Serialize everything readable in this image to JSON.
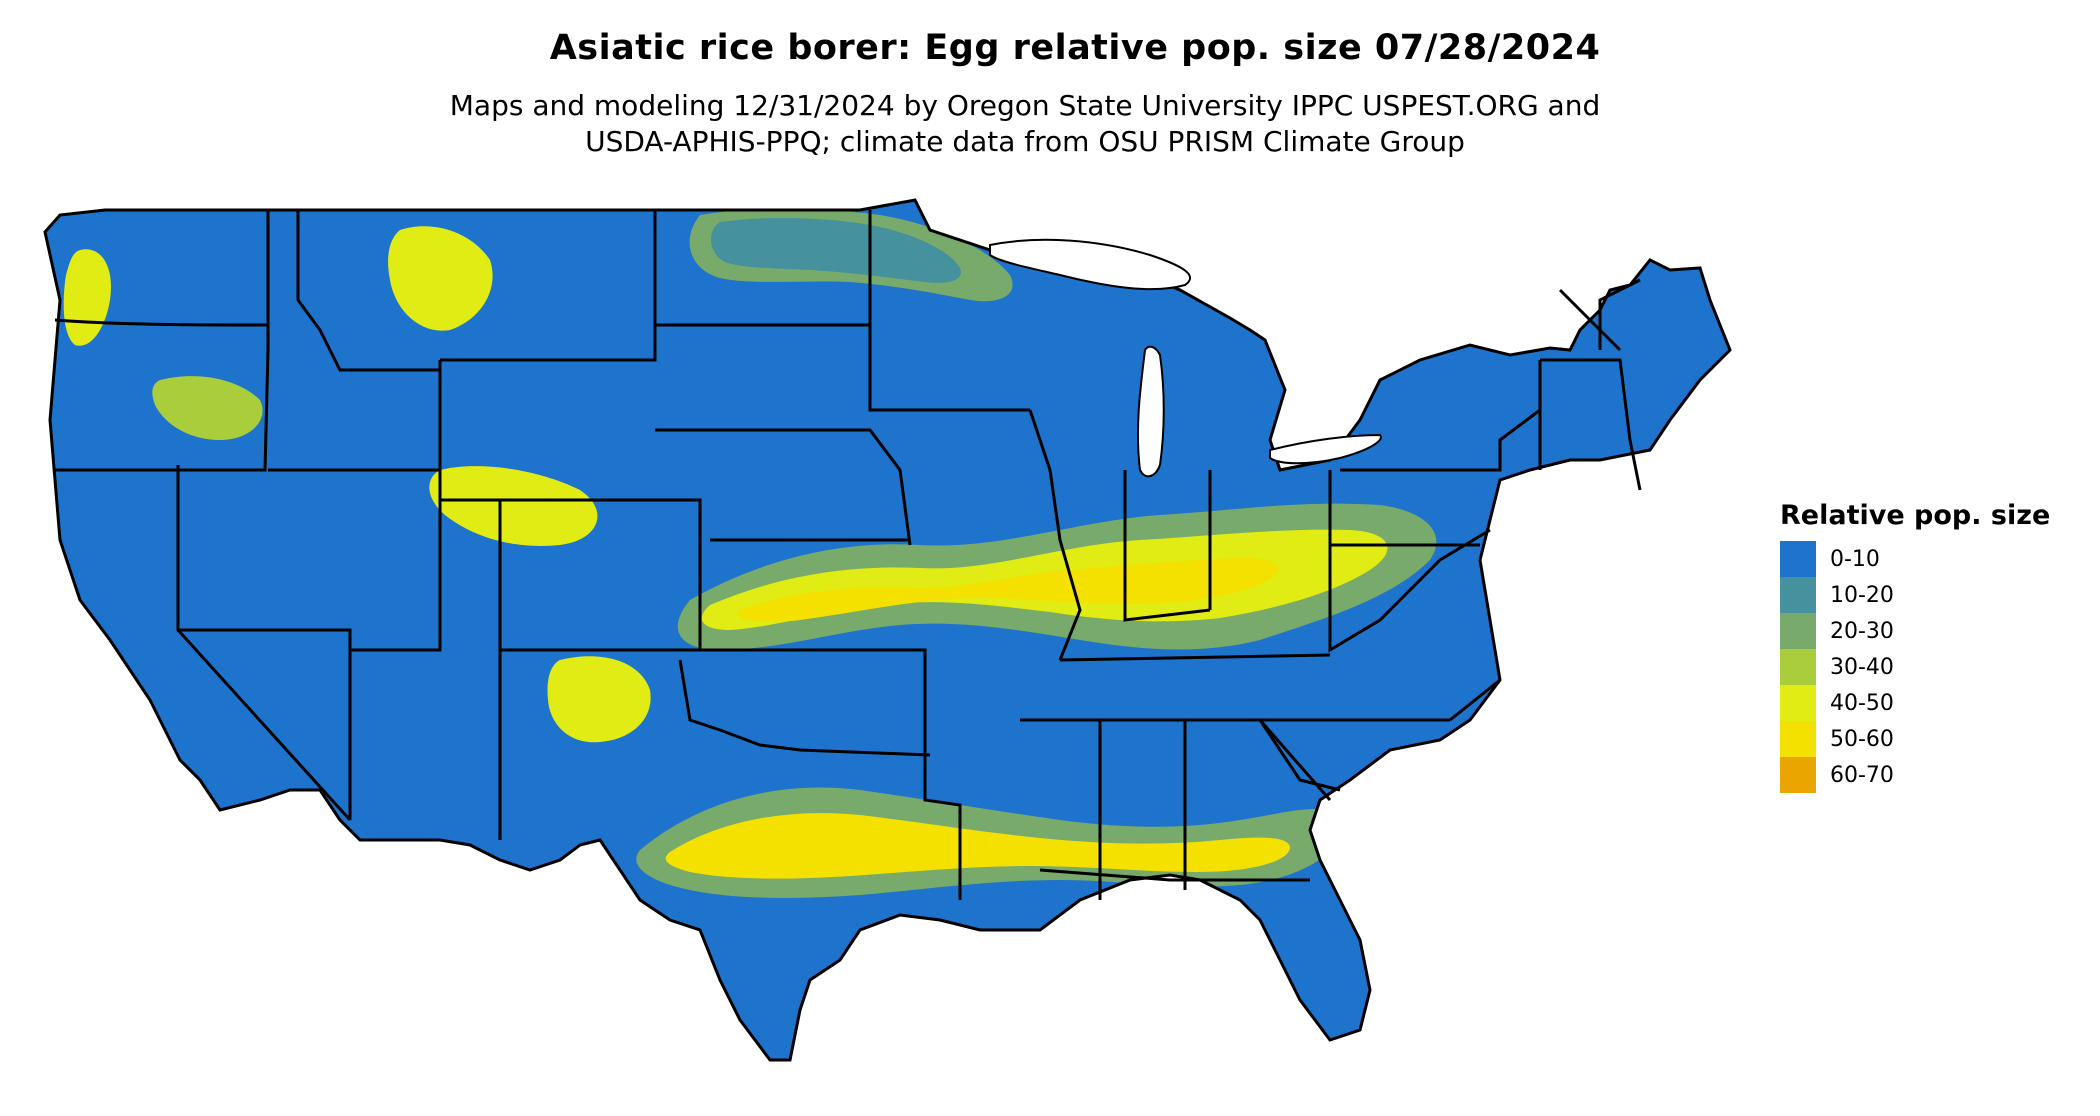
{
  "title": "Asiatic rice borer: Egg relative pop. size 07/28/2024",
  "subtitle_line1": "Maps and modeling 12/31/2024 by Oregon State University IPPC USPEST.ORG and",
  "subtitle_line2": "USDA-APHIS-PPQ; climate data from OSU PRISM Climate Group",
  "legend": {
    "title": "Relative pop. size",
    "items": [
      {
        "label": "0-10",
        "color": "#1E73CC"
      },
      {
        "label": "10-20",
        "color": "#45919E"
      },
      {
        "label": "20-30",
        "color": "#78AA6B"
      },
      {
        "label": "30-40",
        "color": "#AACD3C"
      },
      {
        "label": "40-50",
        "color": "#E1EB14"
      },
      {
        "label": "50-60",
        "color": "#F5E100"
      },
      {
        "label": "60-70",
        "color": "#EBA500"
      }
    ]
  }
}
